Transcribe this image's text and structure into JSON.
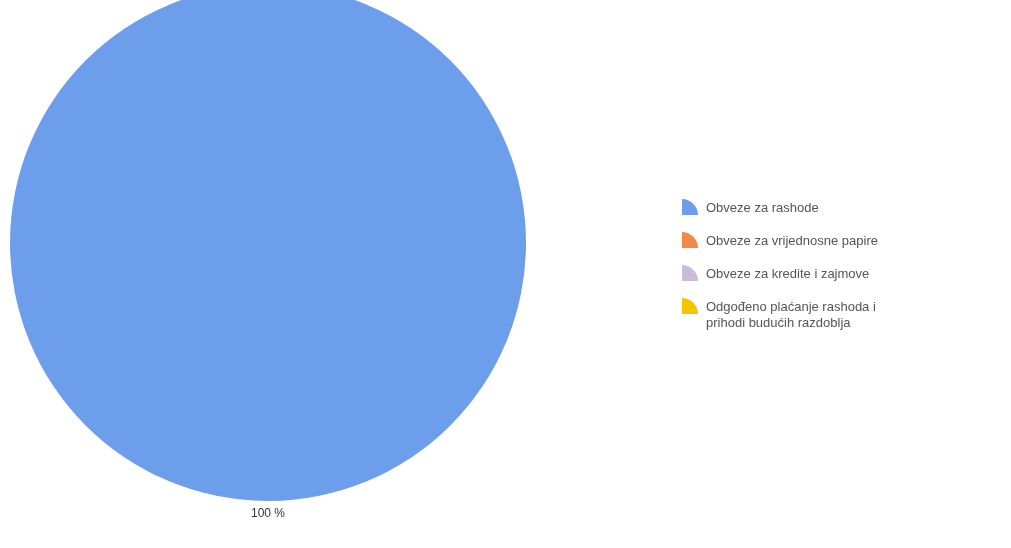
{
  "chart_data": {
    "type": "pie",
    "categories": [
      "Obveze za rashode",
      "Obveze za vrijednosne papire",
      "Obveze za kredite i zajmove",
      "Odgođeno plaćanje rashoda i prihodi budućih razdoblja"
    ],
    "values": [
      100,
      0,
      0,
      0
    ],
    "colors": [
      "#6d9eeb",
      "#f4894a",
      "#c9bcd8",
      "#f5c400"
    ],
    "value_labels": [
      "100 %",
      null,
      null,
      null
    ],
    "legend": "right"
  }
}
